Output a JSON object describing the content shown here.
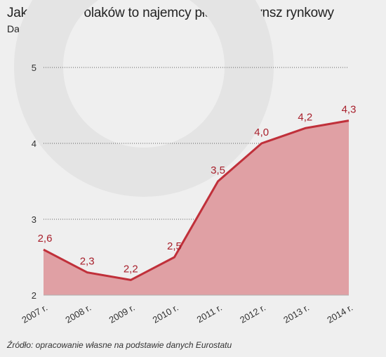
{
  "title": "Jaka część Polaków to najemcy płacący czynsz rynkowy",
  "subtitle": "Dane w proc.",
  "source": "Źródło: opracowanie własne na podstawie danych Eurostatu",
  "colors": {
    "line": "#c0303a",
    "area": "#e0a0a4",
    "label": "#a8202c",
    "grid": "#333333",
    "background": "#efefef"
  },
  "chart_data": {
    "type": "area",
    "title": "Jaka część Polaków to najemcy płacący czynsz rynkowy",
    "subtitle": "Dane w proc.",
    "categories": [
      "2007 r.",
      "2008 r.",
      "2009 r.",
      "2010 r.",
      "2011 r.",
      "2012 r.",
      "2013 r.",
      "2014 r."
    ],
    "values": [
      2.6,
      2.3,
      2.2,
      2.5,
      3.5,
      4.0,
      4.2,
      4.3
    ],
    "value_labels": [
      "2,6",
      "2,3",
      "2,2",
      "2,5",
      "3,5",
      "4,0",
      "4,2",
      "4,3"
    ],
    "yticks": [
      2,
      3,
      4,
      5
    ],
    "ylim": [
      2,
      5
    ],
    "xlabel": "",
    "ylabel": "",
    "grid": "horizontal-dotted"
  }
}
